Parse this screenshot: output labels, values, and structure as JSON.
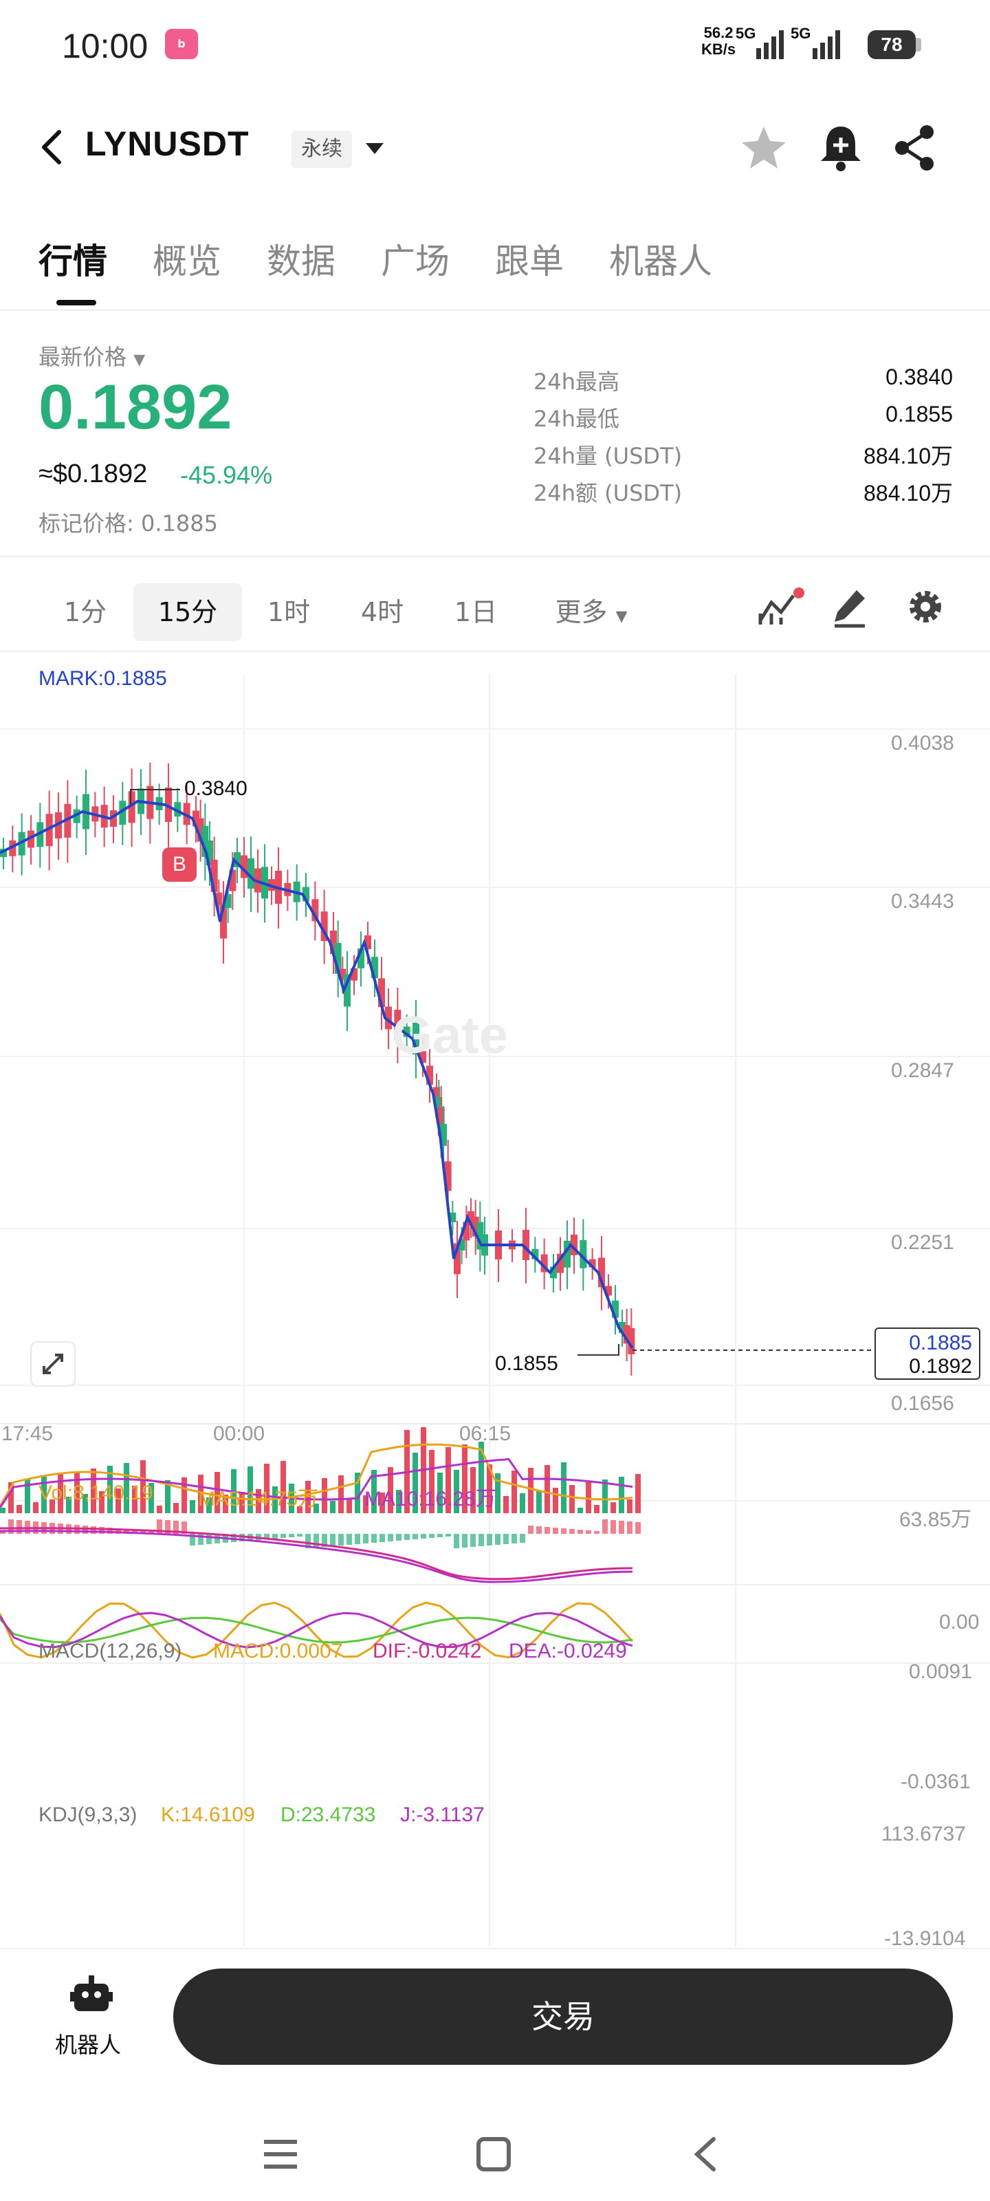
{
  "status_bar": {
    "time": "10:00",
    "app_badge": "bilibili",
    "net_speed": "56.2",
    "net_unit": "KB/s",
    "sim1": "5G",
    "sim2": "5G",
    "battery": "78"
  },
  "header": {
    "symbol": "LYNUSDT",
    "contract_type": "永续",
    "icons": [
      "back-icon",
      "star-icon",
      "bell-plus-icon",
      "share-icon"
    ]
  },
  "tabs": [
    "行情",
    "概览",
    "数据",
    "广场",
    "跟单",
    "机器人"
  ],
  "price": {
    "last_label": "最新价格",
    "last": "0.1892",
    "usd": "≈$0.1892",
    "change": "-45.94%",
    "mark_label": "标记价格:",
    "mark_value": "0.1885",
    "stats": [
      {
        "label": "24h最高",
        "value": "0.3840"
      },
      {
        "label": "24h最低",
        "value": "0.1855"
      },
      {
        "label": "24h量 (USDT)",
        "value": "884.10万"
      },
      {
        "label": "24h额 (USDT)",
        "value": "884.10万"
      }
    ]
  },
  "intervals": {
    "items": [
      "1分",
      "15分",
      "1时",
      "4时",
      "1日",
      "更多"
    ],
    "selected": "15分"
  },
  "main_chart": {
    "mark_line": "MARK:0.1885",
    "y_ticks": [
      "0.4038",
      "0.3443",
      "0.2847",
      "0.2251",
      "0.1656"
    ],
    "x_ticks": [
      "17:45",
      "00:00",
      "06:15"
    ],
    "high_label": "0.3840",
    "low_label": "0.1855",
    "buy_marker": "B",
    "current_mark": "0.1885",
    "current_last": "0.1892",
    "watermark": "Gate"
  },
  "volume": {
    "vol": "Vol:8,140.19",
    "ma5": "MA5:14.75万",
    "ma10": "MA10:16.28万",
    "y_top": "63.85万",
    "y_bottom": "0.00"
  },
  "macd": {
    "title": "MACD(12,26,9)",
    "macd": "MACD:0.0007",
    "dif": "DIF:-0.0242",
    "dea": "DEA:-0.0249",
    "y_top": "0.0091",
    "y_bottom": "-0.0361"
  },
  "kdj": {
    "title": "KDJ(9,3,3)",
    "k": "K:14.6109",
    "d": "D:23.4733",
    "j": "J:-3.1137",
    "y_top": "113.6737",
    "y_bottom": "-13.9104"
  },
  "bottom": {
    "bot_label": "机器人",
    "trade_label": "交易"
  },
  "colors": {
    "up": "#27b07a",
    "down": "#e94b5e",
    "ma_line": "#2443c9",
    "orange": "#e8a317",
    "purple": "#b530c8",
    "green_line": "#59c93a"
  }
}
